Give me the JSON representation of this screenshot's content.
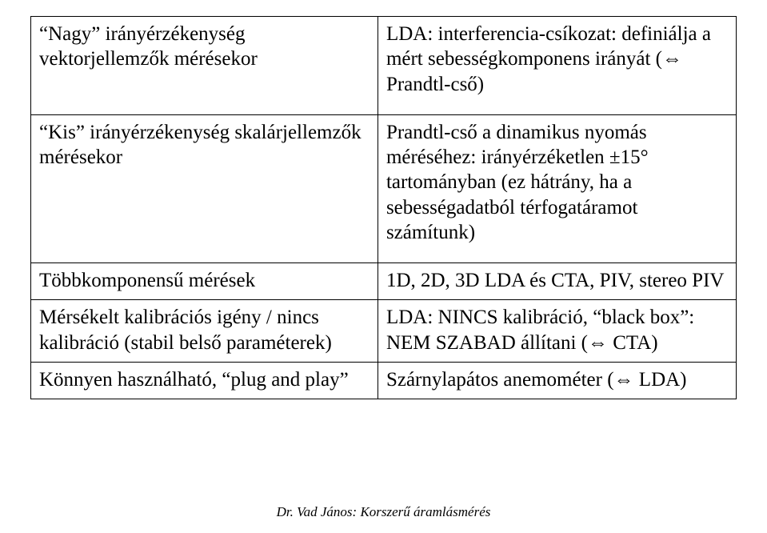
{
  "table": {
    "rows": [
      {
        "left": "“Nagy” irányérzékenység vektorjellemzők mérésekor",
        "right": "LDA: interferencia-csíkozat: definiálja a mért sebességkomponens irányát (⇔ Prandtl-cső)"
      },
      {
        "left": "“Kis” irányérzékenység skalárjellemzők mérésekor",
        "right": "Prandtl-cső a dinamikus nyomás méréséhez: irányérzéketlen ±15° tartományban (ez hátrány, ha a sebességadatból térfogatáramot számítunk)"
      },
      {
        "left": "Többkomponensű mérések",
        "right": "1D, 2D, 3D LDA és CTA, PIV, stereo PIV"
      },
      {
        "left": "Mérsékelt kalibrációs igény / nincs kalibráció (stabil belső paraméterek)",
        "right": "LDA: NINCS kalibráció, “black box”: NEM SZABAD állítani (⇔ CTA)"
      },
      {
        "left": "Könnyen használható, “plug and play”",
        "right": "Szárnylapátos anemométer (⇔ LDA)"
      }
    ]
  },
  "footer": "Dr. Vad János: Korszerű áramlásmérés"
}
